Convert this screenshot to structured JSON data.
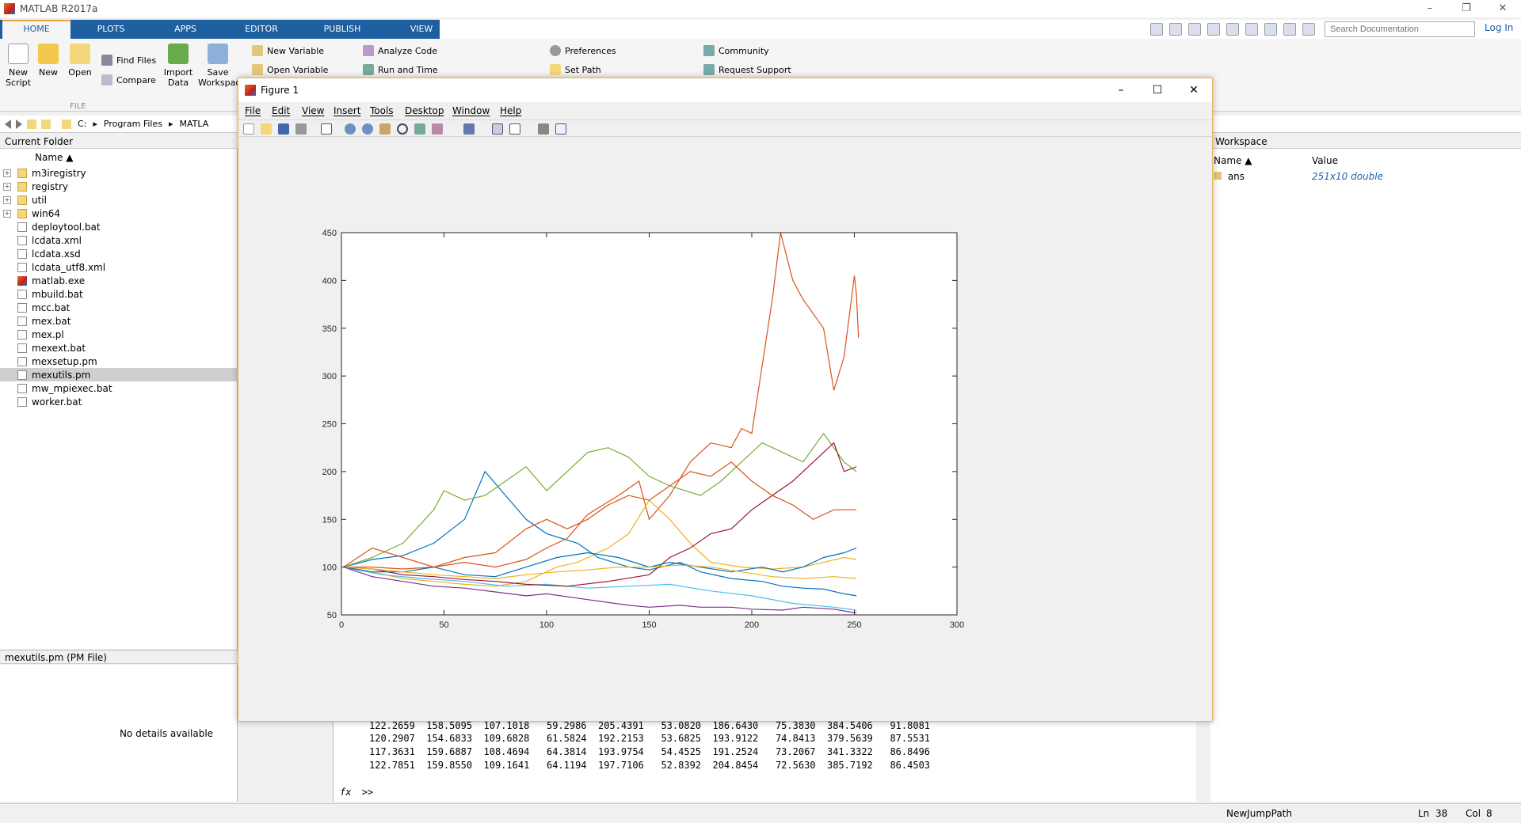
{
  "app": {
    "title": "MATLAB R2017a",
    "window_controls": [
      "–",
      "❐",
      "✕"
    ]
  },
  "ribbon": {
    "tabs": [
      "HOME",
      "PLOTS",
      "APPS",
      "EDITOR",
      "PUBLISH",
      "VIEW"
    ],
    "active_tab": "HOME",
    "search_placeholder": "Search Documentation",
    "login": "Log In",
    "buttons": {
      "new_script": "New Script",
      "new": "New",
      "open": "Open",
      "find_files": "Find Files",
      "compare": "Compare",
      "import_data": "Import Data",
      "save_workspace": "Save Workspac",
      "new_variable": "New Variable",
      "open_variable": "Open Variable",
      "analyze_code": "Analyze Code",
      "run_and_time": "Run and Time",
      "preferences": "Preferences",
      "set_path": "Set Path",
      "community": "Community",
      "request_support": "Request Support"
    },
    "group_file": "FILE"
  },
  "address": {
    "crumbs": [
      "C:",
      "Program Files",
      "MATLA"
    ]
  },
  "current_folder": {
    "title": "Current Folder",
    "column": "Name ▲",
    "items": [
      {
        "name": "m3iregistry",
        "type": "folder"
      },
      {
        "name": "registry",
        "type": "folder"
      },
      {
        "name": "util",
        "type": "folder"
      },
      {
        "name": "win64",
        "type": "folder"
      },
      {
        "name": "deploytool.bat",
        "type": "file"
      },
      {
        "name": "lcdata.xml",
        "type": "file"
      },
      {
        "name": "lcdata.xsd",
        "type": "file"
      },
      {
        "name": "lcdata_utf8.xml",
        "type": "file"
      },
      {
        "name": "matlab.exe",
        "type": "exe"
      },
      {
        "name": "mbuild.bat",
        "type": "file"
      },
      {
        "name": "mcc.bat",
        "type": "file"
      },
      {
        "name": "mex.bat",
        "type": "file"
      },
      {
        "name": "mex.pl",
        "type": "file"
      },
      {
        "name": "mexext.bat",
        "type": "file"
      },
      {
        "name": "mexsetup.pm",
        "type": "file"
      },
      {
        "name": "mexutils.pm",
        "type": "file",
        "selected": true
      },
      {
        "name": "mw_mpiexec.bat",
        "type": "file"
      },
      {
        "name": "worker.bat",
        "type": "file"
      }
    ]
  },
  "details": {
    "title": "mexutils.pm  (PM File)",
    "message": "No details available"
  },
  "command_window": {
    "lines": [
      "122.2659  158.5095  107.1018   59.2986  205.4391   53.0820  186.6430   75.3830  384.5406   91.8081",
      "120.2907  154.6833  109.6828   61.5824  192.2153   53.6825  193.9122   74.8413  379.5639   87.5531",
      "117.3631  159.6887  108.4694   64.3814  193.9754   54.4525  191.2524   73.2067  341.3322   86.8496",
      "122.7851  159.8550  109.1641   64.1194  197.7106   52.8392  204.8454   72.5630  385.7192   86.4503"
    ],
    "prompt": ">>",
    "fx": "fx"
  },
  "workspace": {
    "title": "Workspace",
    "col_name": "Name ▲",
    "col_value": "Value",
    "variables": [
      {
        "name": "ans",
        "value": "251x10 double"
      }
    ]
  },
  "status": {
    "function": "NewJumpPath",
    "ln_label": "Ln",
    "ln": "38",
    "col_label": "Col",
    "col": "8"
  },
  "figure": {
    "title": "Figure 1",
    "menu": [
      "File",
      "Edit",
      "View",
      "Insert",
      "Tools",
      "Desktop",
      "Window",
      "Help"
    ]
  },
  "chart_data": {
    "type": "line",
    "title": "",
    "xlabel": "",
    "ylabel": "",
    "xlim": [
      0,
      300
    ],
    "ylim": [
      50,
      450
    ],
    "xticks": [
      0,
      50,
      100,
      150,
      200,
      250,
      300
    ],
    "yticks": [
      50,
      100,
      150,
      200,
      250,
      300,
      350,
      400,
      450
    ],
    "grid": false,
    "series": [
      {
        "color": "#0072BD",
        "points": [
          [
            1,
            100
          ],
          [
            15,
            108
          ],
          [
            30,
            112
          ],
          [
            45,
            125
          ],
          [
            60,
            150
          ],
          [
            70,
            200
          ],
          [
            80,
            175
          ],
          [
            90,
            150
          ],
          [
            100,
            135
          ],
          [
            115,
            125
          ],
          [
            125,
            110
          ],
          [
            140,
            100
          ],
          [
            150,
            97
          ],
          [
            165,
            105
          ],
          [
            175,
            95
          ],
          [
            190,
            88
          ],
          [
            205,
            85
          ],
          [
            215,
            80
          ],
          [
            225,
            78
          ],
          [
            235,
            77
          ],
          [
            245,
            72
          ],
          [
            251,
            70
          ]
        ]
      },
      {
        "color": "#D95319",
        "points": [
          [
            1,
            100
          ],
          [
            15,
            100
          ],
          [
            30,
            98
          ],
          [
            45,
            100
          ],
          [
            60,
            105
          ],
          [
            75,
            100
          ],
          [
            90,
            108
          ],
          [
            100,
            120
          ],
          [
            110,
            130
          ],
          [
            120,
            155
          ],
          [
            135,
            175
          ],
          [
            145,
            190
          ],
          [
            150,
            150
          ],
          [
            160,
            175
          ],
          [
            170,
            210
          ],
          [
            180,
            230
          ],
          [
            190,
            225
          ],
          [
            195,
            245
          ],
          [
            200,
            240
          ],
          [
            210,
            380
          ],
          [
            214,
            450
          ],
          [
            220,
            400
          ],
          [
            225,
            380
          ],
          [
            235,
            350
          ],
          [
            240,
            285
          ],
          [
            245,
            320
          ],
          [
            250,
            405
          ],
          [
            251,
            385
          ],
          [
            252,
            340
          ]
        ]
      },
      {
        "color": "#EDB120",
        "points": [
          [
            1,
            100
          ],
          [
            15,
            95
          ],
          [
            30,
            88
          ],
          [
            45,
            85
          ],
          [
            60,
            82
          ],
          [
            75,
            80
          ],
          [
            90,
            85
          ],
          [
            105,
            100
          ],
          [
            115,
            105
          ],
          [
            130,
            120
          ],
          [
            140,
            135
          ],
          [
            150,
            170
          ],
          [
            160,
            150
          ],
          [
            170,
            125
          ],
          [
            180,
            105
          ],
          [
            195,
            100
          ],
          [
            210,
            98
          ],
          [
            225,
            100
          ],
          [
            235,
            105
          ],
          [
            245,
            110
          ],
          [
            251,
            108
          ]
        ]
      },
      {
        "color": "#7E2F8E",
        "points": [
          [
            1,
            100
          ],
          [
            15,
            90
          ],
          [
            30,
            85
          ],
          [
            45,
            80
          ],
          [
            60,
            78
          ],
          [
            75,
            74
          ],
          [
            90,
            70
          ],
          [
            100,
            72
          ],
          [
            120,
            66
          ],
          [
            140,
            60
          ],
          [
            150,
            58
          ],
          [
            165,
            60
          ],
          [
            175,
            58
          ],
          [
            190,
            58
          ],
          [
            200,
            56
          ],
          [
            215,
            55
          ],
          [
            225,
            58
          ],
          [
            240,
            56
          ],
          [
            251,
            52
          ]
        ]
      },
      {
        "color": "#77AC30",
        "points": [
          [
            1,
            100
          ],
          [
            15,
            110
          ],
          [
            30,
            125
          ],
          [
            45,
            160
          ],
          [
            50,
            180
          ],
          [
            60,
            170
          ],
          [
            70,
            175
          ],
          [
            80,
            190
          ],
          [
            90,
            205
          ],
          [
            100,
            180
          ],
          [
            110,
            200
          ],
          [
            120,
            220
          ],
          [
            130,
            225
          ],
          [
            140,
            215
          ],
          [
            150,
            195
          ],
          [
            160,
            185
          ],
          [
            175,
            175
          ],
          [
            185,
            190
          ],
          [
            195,
            210
          ],
          [
            205,
            230
          ],
          [
            215,
            220
          ],
          [
            225,
            210
          ],
          [
            235,
            240
          ],
          [
            245,
            210
          ],
          [
            251,
            200
          ]
        ]
      },
      {
        "color": "#4DBEEE",
        "points": [
          [
            1,
            100
          ],
          [
            20,
            92
          ],
          [
            40,
            88
          ],
          [
            60,
            85
          ],
          [
            80,
            80
          ],
          [
            100,
            82
          ],
          [
            120,
            78
          ],
          [
            140,
            80
          ],
          [
            160,
            82
          ],
          [
            180,
            75
          ],
          [
            200,
            70
          ],
          [
            220,
            62
          ],
          [
            240,
            58
          ],
          [
            251,
            55
          ]
        ]
      },
      {
        "color": "#A2142F",
        "points": [
          [
            1,
            100
          ],
          [
            15,
            98
          ],
          [
            30,
            92
          ],
          [
            45,
            90
          ],
          [
            60,
            87
          ],
          [
            75,
            85
          ],
          [
            90,
            82
          ],
          [
            110,
            80
          ],
          [
            130,
            85
          ],
          [
            150,
            92
          ],
          [
            160,
            110
          ],
          [
            170,
            120
          ],
          [
            180,
            135
          ],
          [
            190,
            140
          ],
          [
            200,
            160
          ],
          [
            210,
            175
          ],
          [
            220,
            190
          ],
          [
            230,
            210
          ],
          [
            240,
            230
          ],
          [
            245,
            200
          ],
          [
            251,
            205
          ]
        ]
      },
      {
        "color": "#0072BD",
        "points": [
          [
            1,
            100
          ],
          [
            15,
            95
          ],
          [
            30,
            95
          ],
          [
            45,
            100
          ],
          [
            60,
            92
          ],
          [
            75,
            90
          ],
          [
            90,
            100
          ],
          [
            105,
            110
          ],
          [
            120,
            115
          ],
          [
            135,
            110
          ],
          [
            150,
            100
          ],
          [
            160,
            105
          ],
          [
            175,
            100
          ],
          [
            190,
            95
          ],
          [
            205,
            100
          ],
          [
            215,
            95
          ],
          [
            225,
            100
          ],
          [
            235,
            110
          ],
          [
            245,
            115
          ],
          [
            251,
            120
          ]
        ]
      },
      {
        "color": "#D95319",
        "points": [
          [
            1,
            100
          ],
          [
            15,
            120
          ],
          [
            30,
            110
          ],
          [
            45,
            100
          ],
          [
            60,
            110
          ],
          [
            75,
            115
          ],
          [
            90,
            140
          ],
          [
            100,
            150
          ],
          [
            110,
            140
          ],
          [
            120,
            150
          ],
          [
            130,
            165
          ],
          [
            140,
            175
          ],
          [
            150,
            170
          ],
          [
            160,
            185
          ],
          [
            170,
            200
          ],
          [
            180,
            195
          ],
          [
            190,
            210
          ],
          [
            200,
            190
          ],
          [
            210,
            175
          ],
          [
            220,
            165
          ],
          [
            230,
            150
          ],
          [
            240,
            160
          ],
          [
            251,
            160
          ]
        ]
      },
      {
        "color": "#EDB120",
        "points": [
          [
            1,
            100
          ],
          [
            15,
            98
          ],
          [
            30,
            95
          ],
          [
            45,
            92
          ],
          [
            60,
            90
          ],
          [
            75,
            88
          ],
          [
            90,
            92
          ],
          [
            105,
            95
          ],
          [
            120,
            97
          ],
          [
            135,
            100
          ],
          [
            150,
            100
          ],
          [
            165,
            102
          ],
          [
            180,
            100
          ],
          [
            195,
            95
          ],
          [
            210,
            90
          ],
          [
            225,
            88
          ],
          [
            240,
            90
          ],
          [
            251,
            88
          ]
        ]
      }
    ]
  }
}
